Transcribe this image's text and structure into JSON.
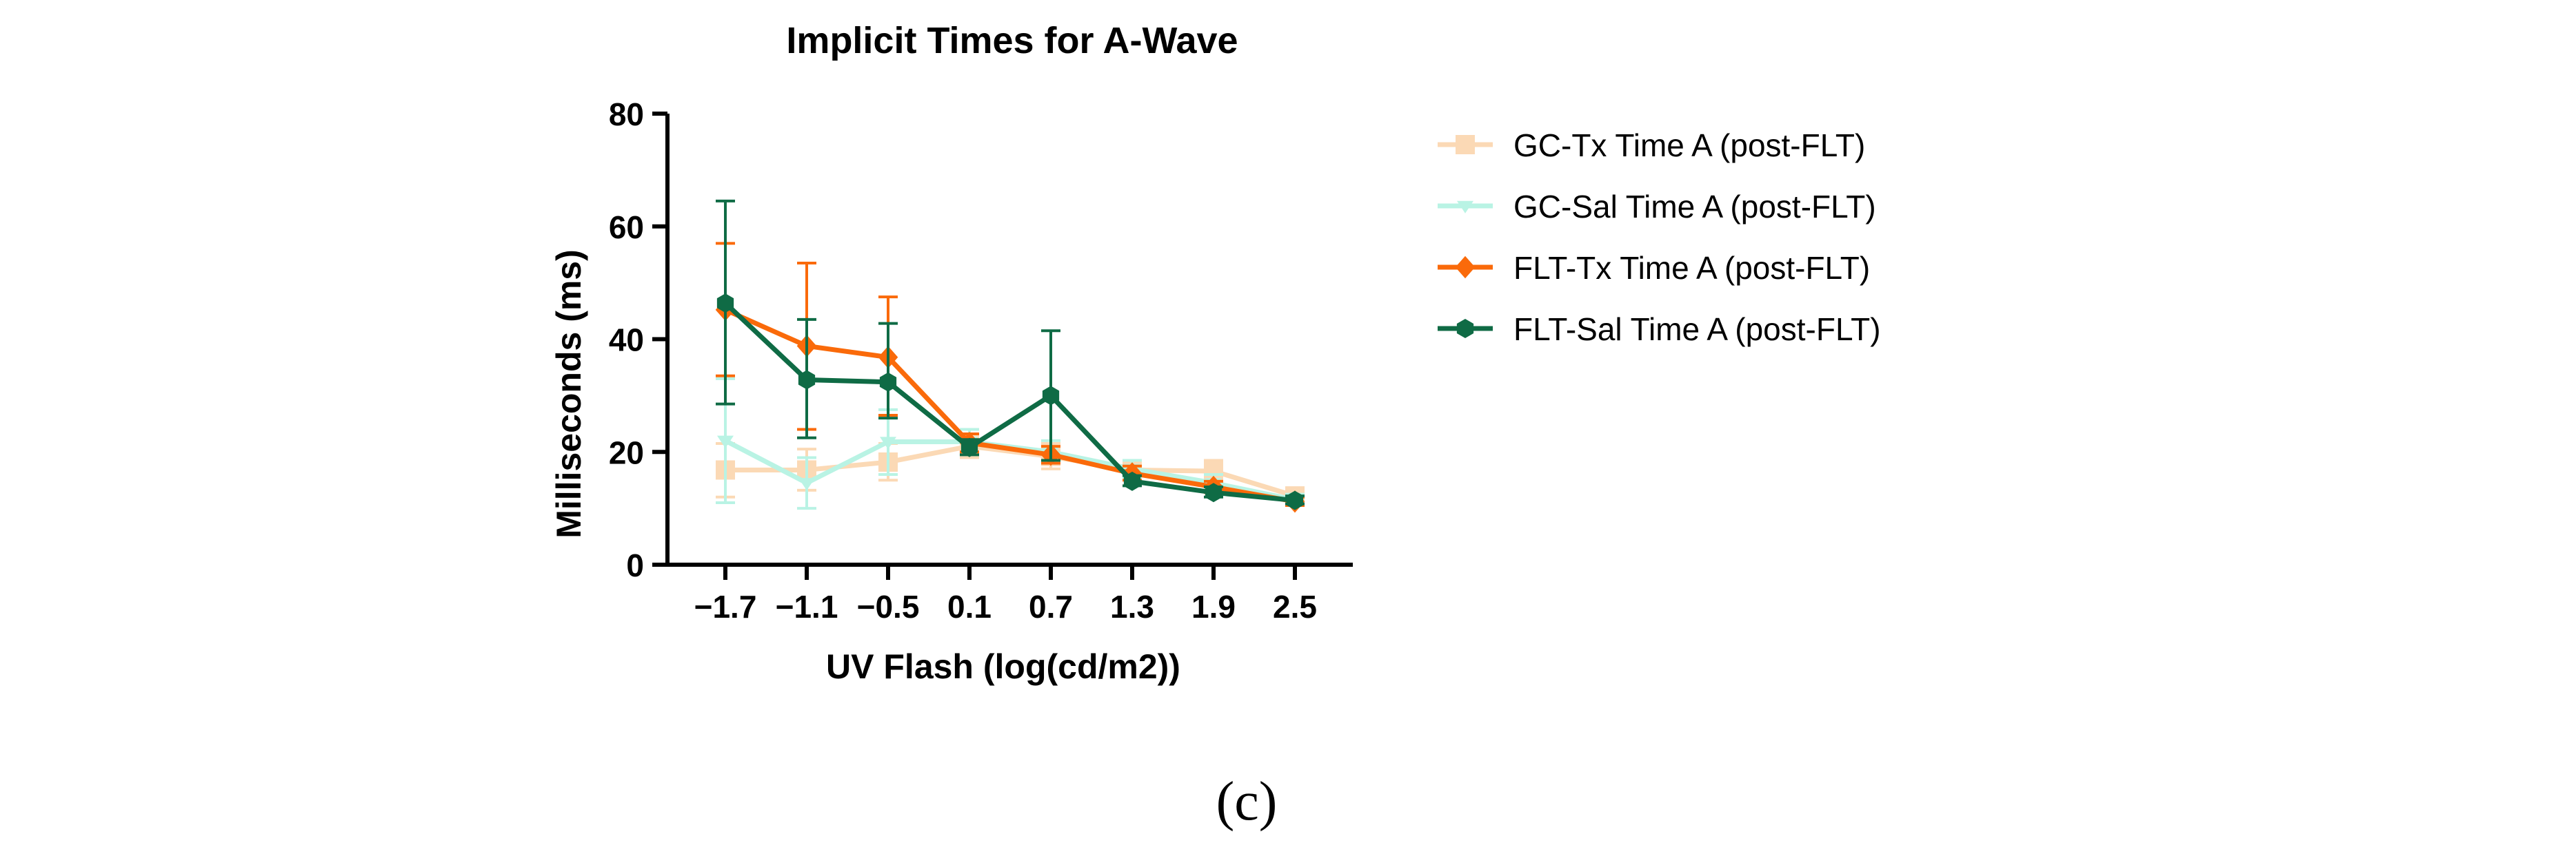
{
  "chart_data": {
    "type": "line",
    "title": "Implicit Times for A-Wave",
    "xlabel": "UV Flash (log(cd/m2))",
    "ylabel": "Milliseconds (ms)",
    "categories": [
      "−1.7",
      "−1.1",
      "−0.5",
      "0.1",
      "0.7",
      "1.3",
      "1.9",
      "2.5"
    ],
    "ylim": [
      0,
      80
    ],
    "yticks": [
      0,
      20,
      40,
      60,
      80
    ],
    "legend_position": "right",
    "series": [
      {
        "name": "GC-Tx Time A (post-FLT)",
        "color": "#fbd9b5",
        "marker": "square",
        "values": [
          16.8,
          16.8,
          18.2,
          21.0,
          19.2,
          16.8,
          16.6,
          12.2
        ],
        "err_low": [
          12.0,
          13.2,
          15.0,
          19.0,
          17.0,
          15.2,
          14.8,
          10.8
        ],
        "err_high": [
          21.5,
          20.5,
          21.5,
          23.0,
          21.5,
          18.5,
          18.5,
          13.5
        ]
      },
      {
        "name": "GC-Sal Time A (post-FLT)",
        "color": "#b9f3e4",
        "marker": "triangle-down",
        "values": [
          22.0,
          14.5,
          21.8,
          21.8,
          20.0,
          17.0,
          14.5,
          11.5
        ],
        "err_low": [
          11.0,
          10.0,
          16.0,
          19.5,
          18.0,
          15.5,
          13.0,
          10.5
        ],
        "err_high": [
          33.0,
          19.0,
          27.5,
          24.0,
          22.0,
          18.5,
          16.0,
          12.5
        ]
      },
      {
        "name": "FLT-Tx Time A (post-FLT)",
        "color": "#fa6a0a",
        "marker": "diamond",
        "values": [
          45.2,
          38.8,
          36.8,
          21.6,
          19.5,
          16.2,
          13.8,
          11.2
        ],
        "err_low": [
          33.5,
          24.0,
          26.5,
          20.0,
          18.0,
          15.0,
          12.8,
          10.5
        ],
        "err_high": [
          57.0,
          53.5,
          47.5,
          23.2,
          21.0,
          17.5,
          14.8,
          12.0
        ]
      },
      {
        "name": "FLT-Sal Time A (post-FLT)",
        "color": "#0f6b45",
        "marker": "hexagon",
        "values": [
          46.4,
          32.8,
          32.4,
          20.8,
          30.0,
          14.8,
          12.8,
          11.4
        ],
        "err_low": [
          28.5,
          22.5,
          26.0,
          19.5,
          18.5,
          14.0,
          12.0,
          10.8
        ],
        "err_high": [
          64.5,
          43.5,
          42.8,
          22.2,
          41.5,
          15.8,
          13.8,
          12.2
        ]
      }
    ]
  },
  "caption": "(c)"
}
